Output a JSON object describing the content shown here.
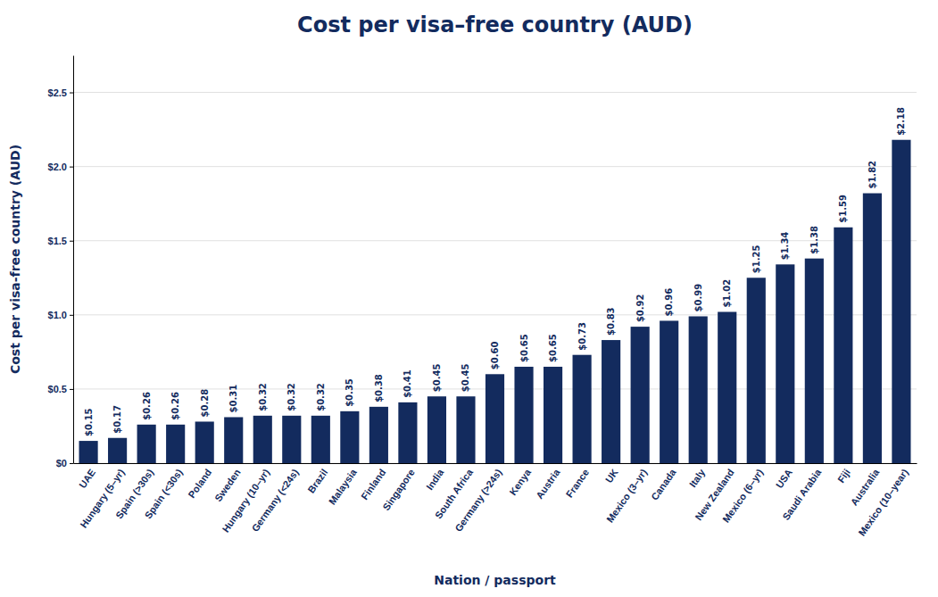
{
  "chart_data": {
    "type": "bar",
    "title": "Cost per visa–free country (AUD)",
    "xlabel": "Nation / passport",
    "ylabel": "Cost per visa-free country (AUD)",
    "categories": [
      "UAE",
      "Hungary (5–yr)",
      "Spain (>30s)",
      "Spain (<30s)",
      "Poland",
      "Sweden",
      "Hungary (10–yr)",
      "Germany (<24s)",
      "Brazil",
      "Malaysia",
      "Finland",
      "Singapore",
      "India",
      "South Africa",
      "Germany (>24s)",
      "Kenya",
      "Austria",
      "France",
      "UK",
      "Mexico (3–yr)",
      "Canada",
      "Italy",
      "New Zealand",
      "Mexico (6–yr)",
      "USA",
      "Saudi Arabia",
      "Fiji",
      "Australia",
      "Mexico (10–year)"
    ],
    "values": [
      0.15,
      0.17,
      0.26,
      0.26,
      0.28,
      0.31,
      0.32,
      0.32,
      0.32,
      0.35,
      0.38,
      0.41,
      0.45,
      0.45,
      0.6,
      0.65,
      0.65,
      0.73,
      0.83,
      0.92,
      0.96,
      0.99,
      1.02,
      1.25,
      1.34,
      1.38,
      1.59,
      1.82,
      2.18
    ],
    "value_labels": [
      "$0.15",
      "$0.17",
      "$0.26",
      "$0.26",
      "$0.28",
      "$0.31",
      "$0.32",
      "$0.32",
      "$0.32",
      "$0.35",
      "$0.38",
      "$0.41",
      "$0.45",
      "$0.45",
      "$0.60",
      "$0.65",
      "$0.65",
      "$0.73",
      "$0.83",
      "$0.92",
      "$0.96",
      "$0.99",
      "$1.02",
      "$1.25",
      "$1.34",
      "$1.38",
      "$1.59",
      "$1.82",
      "$2.18"
    ],
    "data_labels": true,
    "color": "#132b5e",
    "ylim": [
      0,
      2.75
    ],
    "yticks": [
      {
        "value": 0,
        "label": "$0"
      },
      {
        "value": 0.5,
        "label": "$0.5"
      },
      {
        "value": 1.0,
        "label": "$1.0"
      },
      {
        "value": 1.5,
        "label": "$1.5"
      },
      {
        "value": 2.0,
        "label": "$2.0"
      },
      {
        "value": 2.5,
        "label": "$2.5"
      }
    ],
    "grid": true
  }
}
